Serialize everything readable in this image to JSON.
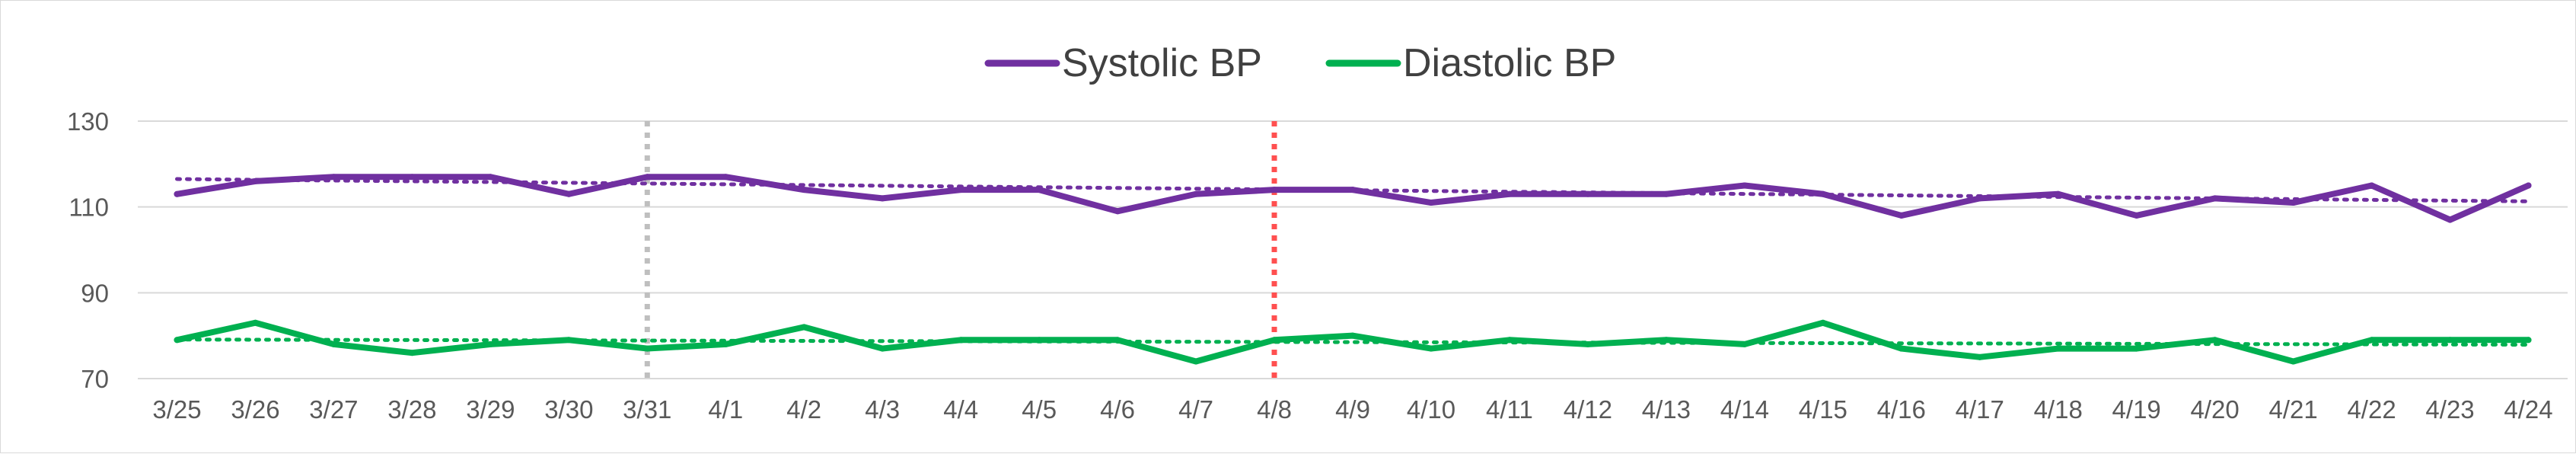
{
  "chart_data": {
    "type": "line",
    "title": "",
    "xlabel": "",
    "ylabel": "",
    "ylim": [
      70,
      130
    ],
    "yticks": [
      70,
      90,
      110,
      130
    ],
    "grid": true,
    "legend_position": "top-center",
    "categories": [
      "3/25",
      "3/26",
      "3/27",
      "3/28",
      "3/29",
      "3/30",
      "3/31",
      "4/1",
      "4/2",
      "4/3",
      "4/4",
      "4/5",
      "4/6",
      "4/7",
      "4/8",
      "4/9",
      "4/10",
      "4/11",
      "4/12",
      "4/13",
      "4/14",
      "4/15",
      "4/16",
      "4/17",
      "4/18",
      "4/19",
      "4/20",
      "4/21",
      "4/22",
      "4/23",
      "4/24"
    ],
    "series": [
      {
        "name": "Systolic BP",
        "color": "#7030a0",
        "values": [
          113,
          116,
          117,
          117,
          117,
          113,
          117,
          117,
          114,
          112,
          114,
          114,
          109,
          113,
          114,
          114,
          111,
          113,
          113,
          113,
          115,
          113,
          108,
          112,
          113,
          108,
          112,
          111,
          115,
          107,
          115
        ],
        "trendline": [
          116.5,
          111.3
        ]
      },
      {
        "name": "Diastolic BP",
        "color": "#00b050",
        "values": [
          79,
          83,
          78,
          76,
          78,
          79,
          77,
          78,
          82,
          77,
          79,
          79,
          79,
          74,
          79,
          80,
          77,
          79,
          78,
          79,
          78,
          83,
          77,
          75,
          77,
          77,
          79,
          74,
          79,
          79,
          79
        ],
        "trendline": [
          79.1,
          77.9
        ]
      }
    ],
    "reference_lines": [
      {
        "x": "3/31",
        "color": "#bfbfbf",
        "style": "dotted"
      },
      {
        "x": "4/8",
        "color": "#ff5050",
        "style": "dotted"
      }
    ]
  }
}
